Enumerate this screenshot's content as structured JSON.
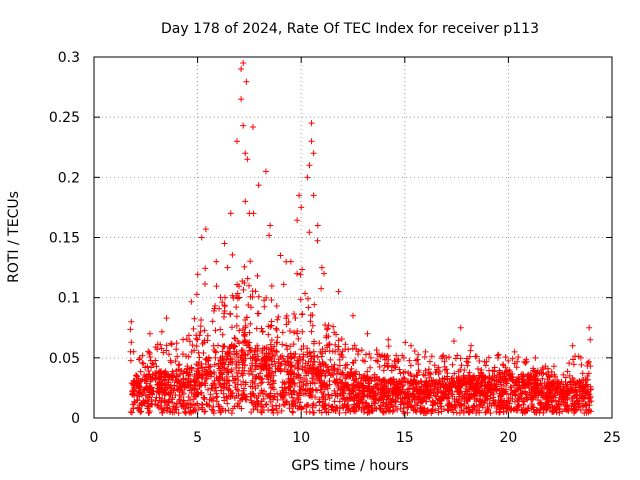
{
  "chart_data": {
    "type": "scatter",
    "title": "Day 178 of 2024, Rate Of TEC Index for receiver p113",
    "xlabel": "GPS time / hours",
    "ylabel": "ROTI / TECUs",
    "xlim": [
      0,
      25
    ],
    "ylim": [
      0,
      0.3
    ],
    "xticks": [
      0,
      5,
      10,
      15,
      20,
      25
    ],
    "yticks": [
      0,
      0.05,
      0.1,
      0.15,
      0.2,
      0.25,
      0.3
    ],
    "xtick_labels": [
      "0",
      "5",
      "10",
      "15",
      "20",
      "25"
    ],
    "ytick_labels": [
      "0",
      "0.05",
      "0.1",
      "0.15",
      "0.2",
      "0.25",
      "0.3"
    ],
    "grid": true,
    "marker": "+",
    "series": [
      {
        "name": "ROTI",
        "color": "#ff0000",
        "x_range": [
          1.75,
          24.0
        ],
        "envelope_x": [
          1.75,
          2.0,
          3.0,
          4.0,
          5.0,
          5.5,
          6.0,
          6.5,
          7.0,
          7.2,
          7.5,
          8.0,
          8.5,
          9.0,
          9.5,
          10.0,
          10.3,
          10.5,
          10.7,
          11.0,
          11.5,
          12.0,
          13.0,
          14.0,
          15.0,
          16.0,
          17.0,
          17.5,
          18.0,
          19.0,
          20.0,
          21.0,
          22.0,
          22.5,
          23.0,
          23.5,
          24.0
        ],
        "envelope_max": [
          0.08,
          0.05,
          0.07,
          0.08,
          0.12,
          0.155,
          0.14,
          0.17,
          0.23,
          0.295,
          0.27,
          0.2,
          0.17,
          0.16,
          0.14,
          0.185,
          0.2,
          0.245,
          0.16,
          0.12,
          0.1,
          0.085,
          0.07,
          0.065,
          0.065,
          0.055,
          0.055,
          0.07,
          0.06,
          0.05,
          0.055,
          0.05,
          0.045,
          0.03,
          0.06,
          0.05,
          0.075
        ],
        "typical_level": [
          0.02,
          0.02,
          0.025,
          0.025,
          0.03,
          0.035,
          0.04,
          0.04,
          0.045,
          0.05,
          0.045,
          0.04,
          0.04,
          0.035,
          0.035,
          0.04,
          0.04,
          0.04,
          0.035,
          0.03,
          0.03,
          0.025,
          0.022,
          0.02,
          0.02,
          0.02,
          0.02,
          0.022,
          0.022,
          0.022,
          0.025,
          0.022,
          0.02,
          0.018,
          0.02,
          0.02,
          0.02
        ],
        "highlighted_points": [
          [
            1.8,
            0.08
          ],
          [
            1.8,
            0.063
          ],
          [
            2.7,
            0.07
          ],
          [
            3.5,
            0.083
          ],
          [
            5.2,
            0.15
          ],
          [
            5.4,
            0.157
          ],
          [
            5.9,
            0.13
          ],
          [
            6.3,
            0.145
          ],
          [
            6.6,
            0.17
          ],
          [
            6.9,
            0.23
          ],
          [
            7.1,
            0.29
          ],
          [
            7.2,
            0.295
          ],
          [
            7.1,
            0.265
          ],
          [
            7.2,
            0.243
          ],
          [
            7.3,
            0.22
          ],
          [
            7.4,
            0.215
          ],
          [
            7.5,
            0.17
          ],
          [
            7.3,
            0.18
          ],
          [
            7.7,
            0.17
          ],
          [
            8.3,
            0.205
          ],
          [
            8.5,
            0.16
          ],
          [
            9.0,
            0.135
          ],
          [
            9.5,
            0.13
          ],
          [
            9.8,
            0.12
          ],
          [
            9.9,
            0.185
          ],
          [
            10.0,
            0.175
          ],
          [
            10.3,
            0.2
          ],
          [
            10.5,
            0.245
          ],
          [
            10.5,
            0.23
          ],
          [
            10.6,
            0.22
          ],
          [
            10.4,
            0.21
          ],
          [
            10.6,
            0.185
          ],
          [
            10.8,
            0.16
          ],
          [
            11.0,
            0.125
          ],
          [
            11.1,
            0.12
          ],
          [
            11.8,
            0.105
          ],
          [
            12.5,
            0.085
          ],
          [
            13.2,
            0.07
          ],
          [
            14.2,
            0.065
          ],
          [
            15.3,
            0.06
          ],
          [
            16.0,
            0.055
          ],
          [
            17.0,
            0.05
          ],
          [
            17.7,
            0.075
          ],
          [
            18.2,
            0.06
          ],
          [
            19.5,
            0.05
          ],
          [
            20.3,
            0.055
          ],
          [
            21.3,
            0.05
          ],
          [
            22.2,
            0.043
          ],
          [
            23.1,
            0.06
          ],
          [
            23.5,
            0.05
          ],
          [
            23.9,
            0.075
          ],
          [
            23.95,
            0.065
          ]
        ]
      }
    ]
  }
}
